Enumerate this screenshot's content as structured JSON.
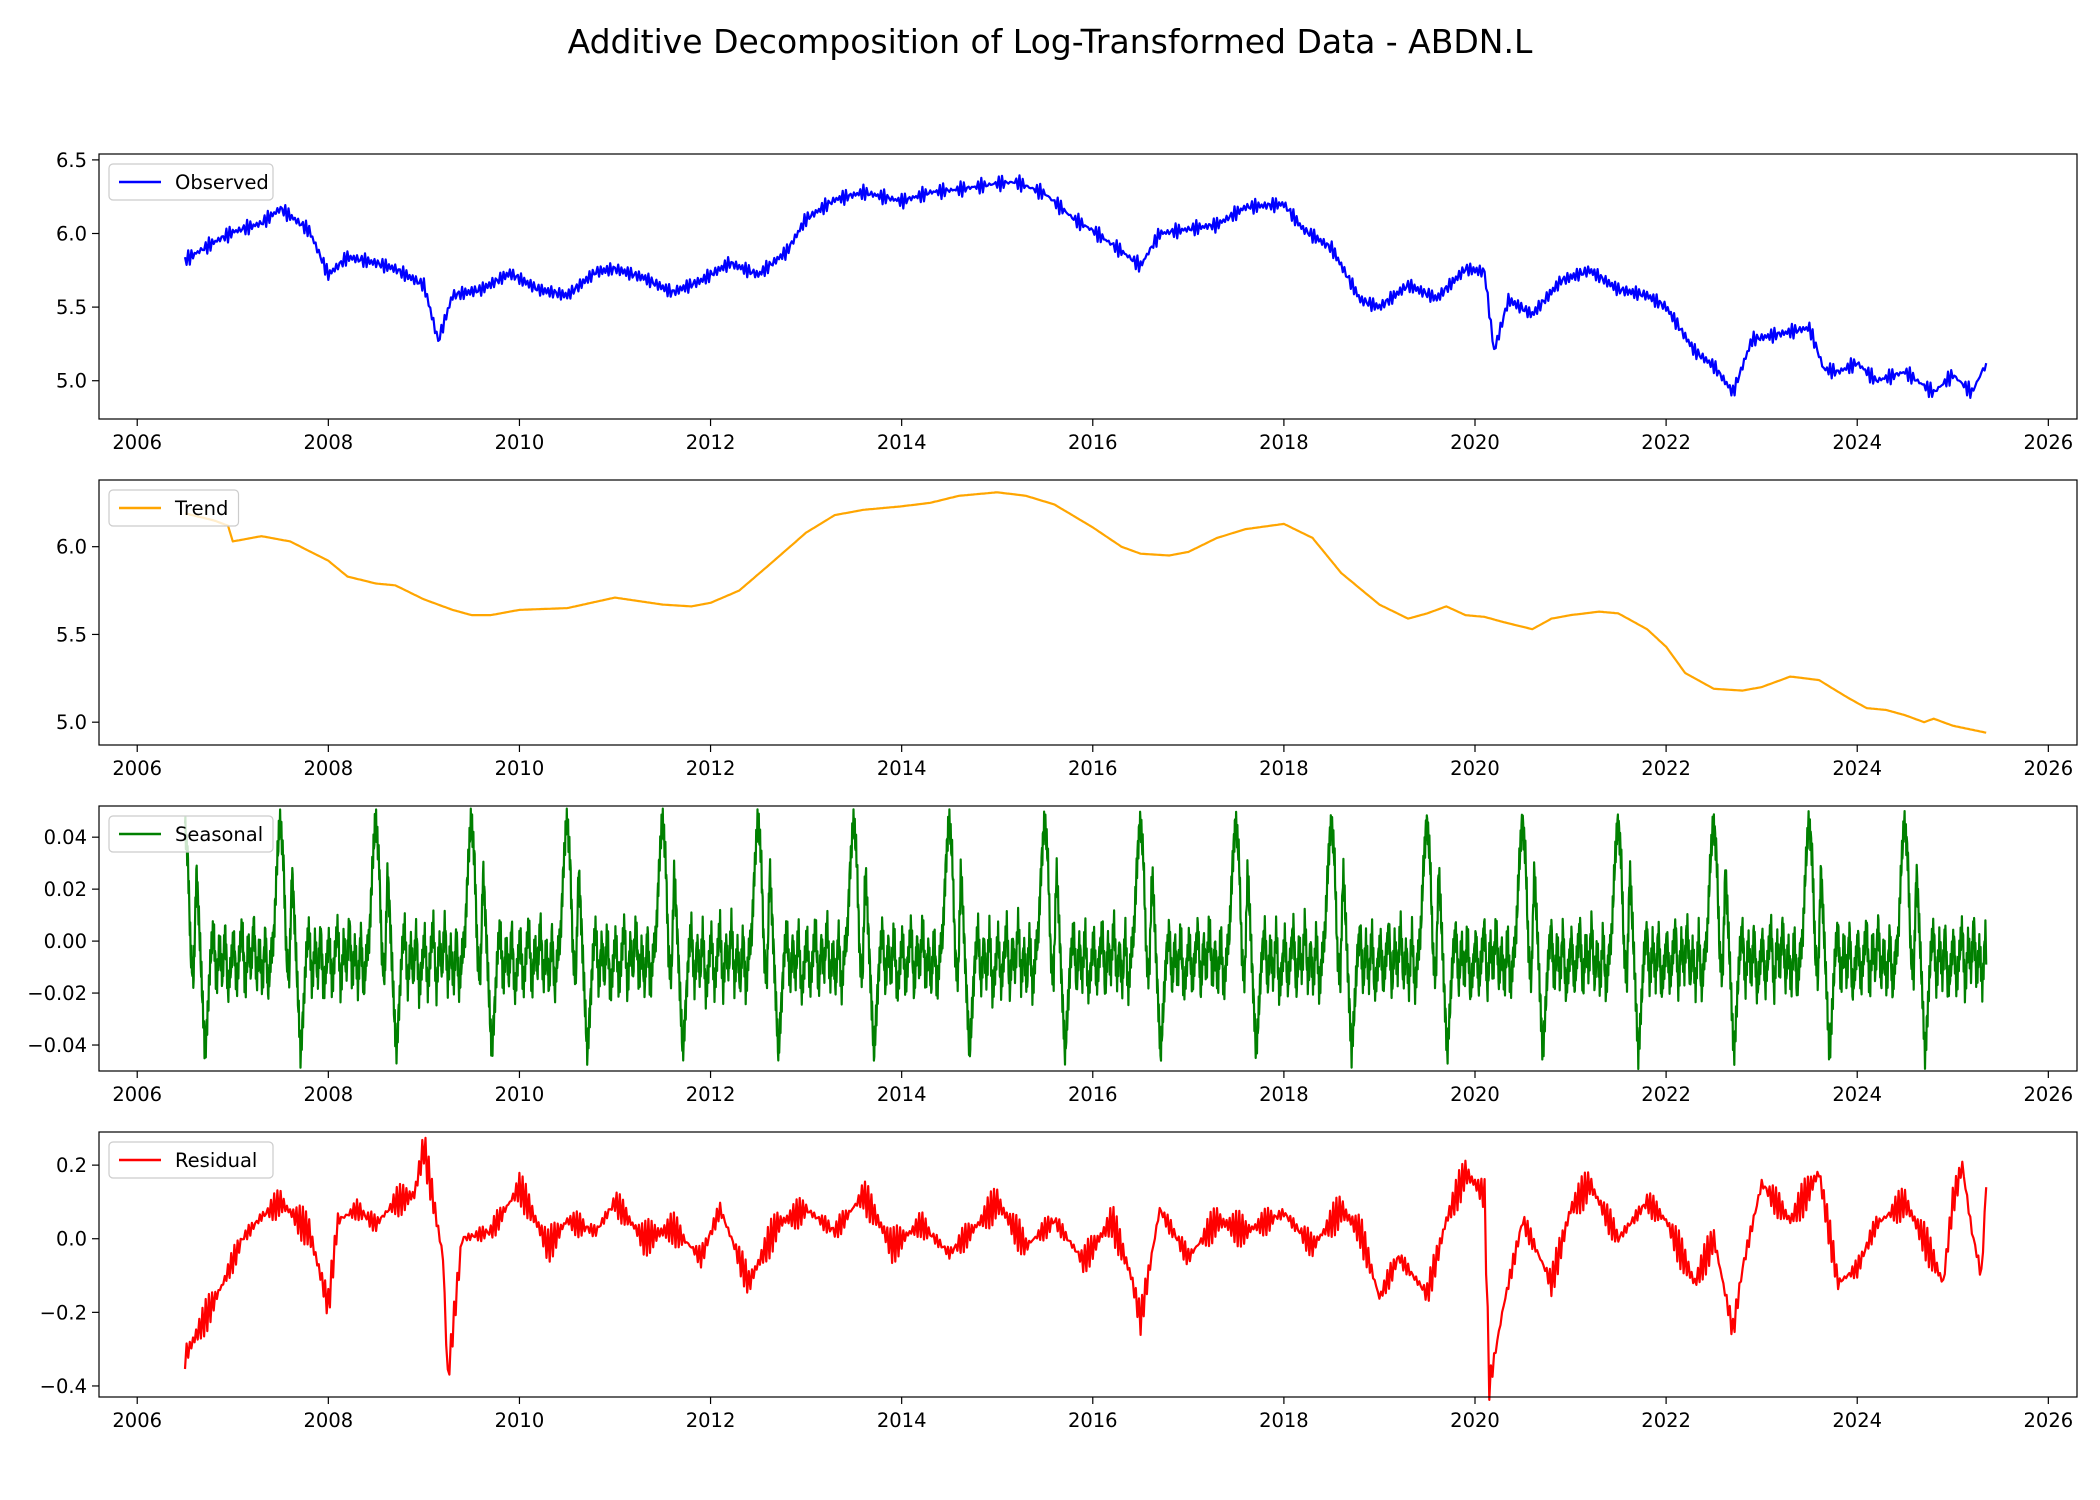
{
  "title": "Additive Decomposition of Log-Transformed Data - ABDN.L",
  "chart_data": [
    {
      "type": "line",
      "name": "observed",
      "series": [
        {
          "name": "Observed",
          "color": "#0000ff",
          "x": [
            2006.5,
            2006.8,
            2007.0,
            2007.3,
            2007.5,
            2007.8,
            2008.0,
            2008.2,
            2008.5,
            2008.7,
            2009.0,
            2009.15,
            2009.3,
            2009.6,
            2009.9,
            2010.2,
            2010.5,
            2010.8,
            2011.0,
            2011.3,
            2011.6,
            2011.9,
            2012.2,
            2012.5,
            2012.8,
            2013.0,
            2013.3,
            2013.6,
            2014.0,
            2014.3,
            2014.6,
            2015.0,
            2015.2,
            2015.5,
            2015.8,
            2016.0,
            2016.3,
            2016.5,
            2016.7,
            2017.0,
            2017.3,
            2017.6,
            2018.0,
            2018.2,
            2018.5,
            2018.8,
            2019.0,
            2019.3,
            2019.6,
            2019.9,
            2020.1,
            2020.2,
            2020.35,
            2020.6,
            2020.9,
            2021.2,
            2021.5,
            2021.8,
            2022.0,
            2022.3,
            2022.5,
            2022.7,
            2022.9,
            2023.2,
            2023.5,
            2023.65,
            2023.8,
            2024.0,
            2024.2,
            2024.5,
            2024.8,
            2025.0,
            2025.2,
            2025.35
          ],
          "y": [
            5.82,
            5.94,
            6.01,
            6.07,
            6.17,
            6.02,
            5.72,
            5.84,
            5.8,
            5.76,
            5.65,
            5.27,
            5.58,
            5.62,
            5.73,
            5.62,
            5.58,
            5.74,
            5.76,
            5.7,
            5.6,
            5.68,
            5.8,
            5.72,
            5.88,
            6.1,
            6.23,
            6.28,
            6.22,
            6.28,
            6.3,
            6.34,
            6.35,
            6.27,
            6.1,
            6.02,
            5.88,
            5.78,
            6.0,
            6.03,
            6.06,
            6.18,
            6.2,
            6.03,
            5.9,
            5.55,
            5.5,
            5.65,
            5.56,
            5.76,
            5.74,
            5.2,
            5.55,
            5.45,
            5.68,
            5.75,
            5.62,
            5.58,
            5.5,
            5.2,
            5.1,
            4.92,
            5.28,
            5.32,
            5.36,
            5.08,
            5.06,
            5.12,
            5.0,
            5.06,
            4.92,
            5.04,
            4.92,
            5.12
          ]
        }
      ],
      "xticks": [
        "2006",
        "2008",
        "2010",
        "2012",
        "2014",
        "2016",
        "2018",
        "2020",
        "2022",
        "2024",
        "2026"
      ],
      "yticks": [
        "5.0",
        "5.5",
        "6.0",
        "6.5"
      ],
      "xlim": [
        2005.6,
        2026.3
      ],
      "ylim": [
        4.74,
        6.54
      ],
      "legend": "upper left",
      "grid": false
    },
    {
      "type": "line",
      "name": "trend",
      "series": [
        {
          "name": "Trend",
          "color": "#ffa500",
          "x": [
            2006.5,
            2006.8,
            2006.95,
            2007.0,
            2007.3,
            2007.6,
            2008.0,
            2008.2,
            2008.5,
            2008.7,
            2009.0,
            2009.3,
            2009.5,
            2009.7,
            2010.0,
            2010.5,
            2011.0,
            2011.5,
            2011.8,
            2012.0,
            2012.3,
            2012.6,
            2013.0,
            2013.3,
            2013.6,
            2014.0,
            2014.3,
            2014.6,
            2015.0,
            2015.3,
            2015.6,
            2016.0,
            2016.3,
            2016.5,
            2016.8,
            2017.0,
            2017.3,
            2017.6,
            2018.0,
            2018.3,
            2018.6,
            2019.0,
            2019.3,
            2019.5,
            2019.7,
            2019.9,
            2020.1,
            2020.3,
            2020.6,
            2020.8,
            2021.0,
            2021.3,
            2021.5,
            2021.8,
            2022.0,
            2022.2,
            2022.5,
            2022.8,
            2023.0,
            2023.3,
            2023.6,
            2023.9,
            2024.1,
            2024.3,
            2024.5,
            2024.7,
            2024.8,
            2025.0,
            2025.35
          ],
          "y": [
            6.19,
            6.15,
            6.12,
            6.03,
            6.06,
            6.03,
            5.92,
            5.83,
            5.79,
            5.78,
            5.7,
            5.64,
            5.61,
            5.61,
            5.64,
            5.65,
            5.71,
            5.67,
            5.66,
            5.68,
            5.75,
            5.89,
            6.08,
            6.18,
            6.21,
            6.23,
            6.25,
            6.29,
            6.31,
            6.29,
            6.24,
            6.11,
            6.0,
            5.96,
            5.95,
            5.97,
            6.05,
            6.1,
            6.13,
            6.05,
            5.85,
            5.67,
            5.59,
            5.62,
            5.66,
            5.61,
            5.6,
            5.57,
            5.53,
            5.59,
            5.61,
            5.63,
            5.62,
            5.53,
            5.43,
            5.28,
            5.19,
            5.18,
            5.2,
            5.26,
            5.24,
            5.14,
            5.08,
            5.07,
            5.04,
            5.0,
            5.02,
            4.98,
            4.94
          ]
        }
      ],
      "xticks": [
        "2006",
        "2008",
        "2010",
        "2012",
        "2014",
        "2016",
        "2018",
        "2020",
        "2022",
        "2024",
        "2026"
      ],
      "yticks": [
        "5.0",
        "5.5",
        "6.0"
      ],
      "xlim": [
        2005.6,
        2026.3
      ],
      "ylim": [
        4.87,
        6.38
      ],
      "legend": "upper left",
      "grid": false
    },
    {
      "type": "line",
      "name": "seasonal",
      "series": [
        {
          "name": "Seasonal",
          "color": "#008000",
          "period_years": 1.0,
          "start": 2006.5,
          "end": 2025.35,
          "pattern_phase": [
            0.0,
            0.03,
            0.06,
            0.09,
            0.12,
            0.15,
            0.18,
            0.21,
            0.24,
            0.27,
            0.3,
            0.33,
            0.36,
            0.39,
            0.42,
            0.45,
            0.48,
            0.51,
            0.54,
            0.57,
            0.6,
            0.63,
            0.66,
            0.69,
            0.72,
            0.75,
            0.78,
            0.81,
            0.84,
            0.87,
            0.9,
            0.93,
            0.96,
            0.99
          ],
          "pattern_value": [
            0.045,
            0.032,
            -0.005,
            -0.015,
            0.028,
            0.005,
            -0.02,
            -0.044,
            -0.025,
            -0.005,
            0.005,
            -0.018,
            0.0,
            -0.015,
            0.005,
            -0.02,
            -0.01,
            0.002,
            -0.018,
            -0.005,
            0.006,
            -0.02,
            0.0,
            -0.012,
            0.008,
            -0.016,
            -0.002,
            -0.018,
            0.004,
            -0.02,
            -0.005,
            0.002,
            0.028,
            0.045
          ]
        }
      ],
      "xticks": [
        "2006",
        "2008",
        "2010",
        "2012",
        "2014",
        "2016",
        "2018",
        "2020",
        "2022",
        "2024",
        "2026"
      ],
      "yticks": [
        "−0.04",
        "−0.02",
        "0.00",
        "0.02",
        "0.04"
      ],
      "xlim": [
        2005.6,
        2026.3
      ],
      "ylim": [
        -0.05,
        0.052
      ],
      "legend": "upper left",
      "grid": false
    },
    {
      "type": "line",
      "name": "residual",
      "series": [
        {
          "name": "Residual",
          "color": "#ff0000",
          "x": [
            2006.5,
            2006.7,
            2006.9,
            2007.1,
            2007.3,
            2007.5,
            2007.8,
            2008.0,
            2008.1,
            2008.3,
            2008.5,
            2008.7,
            2008.9,
            2009.0,
            2009.2,
            2009.25,
            2009.4,
            2009.7,
            2010.0,
            2010.3,
            2010.5,
            2010.8,
            2011.0,
            2011.3,
            2011.6,
            2011.9,
            2012.1,
            2012.4,
            2012.7,
            2013.0,
            2013.3,
            2013.6,
            2013.9,
            2014.2,
            2014.5,
            2014.8,
            2015.0,
            2015.3,
            2015.6,
            2015.9,
            2016.2,
            2016.4,
            2016.5,
            2016.7,
            2017.0,
            2017.3,
            2017.6,
            2018.0,
            2018.3,
            2018.6,
            2018.8,
            2019.0,
            2019.2,
            2019.5,
            2019.7,
            2019.9,
            2020.1,
            2020.15,
            2020.3,
            2020.5,
            2020.8,
            2021.0,
            2021.2,
            2021.5,
            2021.8,
            2022.0,
            2022.3,
            2022.5,
            2022.7,
            2022.8,
            2023.0,
            2023.3,
            2023.6,
            2023.8,
            2024.0,
            2024.2,
            2024.5,
            2024.7,
            2024.9,
            2025.0,
            2025.1,
            2025.2,
            2025.3,
            2025.35
          ],
          "y": [
            -0.32,
            -0.22,
            -0.12,
            0.0,
            0.06,
            0.1,
            0.02,
            -0.18,
            0.05,
            0.08,
            0.04,
            0.1,
            0.12,
            0.25,
            -0.05,
            -0.38,
            0.0,
            0.02,
            0.14,
            -0.02,
            0.05,
            0.02,
            0.1,
            0.0,
            0.03,
            -0.05,
            0.08,
            -0.12,
            0.04,
            0.08,
            0.02,
            0.12,
            -0.02,
            0.04,
            -0.04,
            0.04,
            0.1,
            -0.02,
            0.05,
            -0.06,
            0.05,
            -0.1,
            -0.22,
            0.08,
            -0.05,
            0.05,
            0.02,
            0.07,
            -0.02,
            0.08,
            0.02,
            -0.16,
            -0.05,
            -0.15,
            0.05,
            0.18,
            0.12,
            -0.4,
            -0.18,
            0.05,
            -0.12,
            0.08,
            0.15,
            0.0,
            0.1,
            0.05,
            -0.12,
            0.0,
            -0.25,
            -0.08,
            0.15,
            0.05,
            0.18,
            -0.12,
            -0.08,
            0.04,
            0.1,
            0.0,
            -0.12,
            0.1,
            0.2,
            0.02,
            -0.1,
            0.14
          ]
        }
      ],
      "xticks": [
        "2006",
        "2008",
        "2010",
        "2012",
        "2014",
        "2016",
        "2018",
        "2020",
        "2022",
        "2024",
        "2026"
      ],
      "yticks": [
        "−0.4",
        "−0.2",
        "0.0",
        "0.2"
      ],
      "xlim": [
        2005.6,
        2026.3
      ],
      "ylim": [
        -0.43,
        0.29
      ],
      "legend": "upper left",
      "grid": false
    }
  ]
}
